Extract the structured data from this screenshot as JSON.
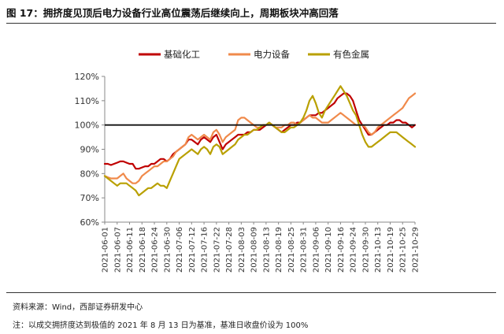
{
  "header": {
    "title": "图 17：拥挤度见顶后电力设备行业高位震荡后继续向上，周期板块冲高回落"
  },
  "footer": {
    "source": "资料来源：Wind，西部证券研发中心",
    "note": "注：以成交拥挤度达到极值的 2021 年 8 月 13 日为基准，基准日收盘价设为 100%"
  },
  "chart_data": {
    "type": "line",
    "ylim": [
      60,
      120
    ],
    "yticks": [
      "60%",
      "70%",
      "80%",
      "90%",
      "100%",
      "110%",
      "120%"
    ],
    "reference_line": 100,
    "legend_position": "top-center",
    "x": [
      "2021-06-01",
      "2021-06-02",
      "2021-06-03",
      "2021-06-04",
      "2021-06-07",
      "2021-06-08",
      "2021-06-09",
      "2021-06-10",
      "2021-06-11",
      "2021-06-15",
      "2021-06-16",
      "2021-06-17",
      "2021-06-18",
      "2021-06-21",
      "2021-06-22",
      "2021-06-23",
      "2021-06-24",
      "2021-06-25",
      "2021-06-28",
      "2021-06-29",
      "2021-06-30",
      "2021-07-01",
      "2021-07-02",
      "2021-07-05",
      "2021-07-06",
      "2021-07-07",
      "2021-07-08",
      "2021-07-09",
      "2021-07-12",
      "2021-07-13",
      "2021-07-14",
      "2021-07-15",
      "2021-07-16",
      "2021-07-19",
      "2021-07-20",
      "2021-07-21",
      "2021-07-22",
      "2021-07-23",
      "2021-07-26",
      "2021-07-27",
      "2021-07-28",
      "2021-07-29",
      "2021-07-30",
      "2021-08-02",
      "2021-08-03",
      "2021-08-04",
      "2021-08-05",
      "2021-08-06",
      "2021-08-09",
      "2021-08-10",
      "2021-08-11",
      "2021-08-12",
      "2021-08-13",
      "2021-08-16",
      "2021-08-17",
      "2021-08-18",
      "2021-08-19",
      "2021-08-20",
      "2021-08-23",
      "2021-08-24",
      "2021-08-25",
      "2021-08-26",
      "2021-08-27",
      "2021-08-30",
      "2021-08-31",
      "2021-09-01",
      "2021-09-02",
      "2021-09-03",
      "2021-09-06",
      "2021-09-07",
      "2021-09-08",
      "2021-09-09",
      "2021-09-10",
      "2021-09-13",
      "2021-09-14",
      "2021-09-15",
      "2021-09-16",
      "2021-09-17",
      "2021-09-22",
      "2021-09-23",
      "2021-09-24",
      "2021-09-27",
      "2021-09-28",
      "2021-09-29",
      "2021-09-30",
      "2021-10-08",
      "2021-10-11",
      "2021-10-12",
      "2021-10-13",
      "2021-10-14",
      "2021-10-15",
      "2021-10-18",
      "2021-10-19",
      "2021-10-20",
      "2021-10-21",
      "2021-10-22",
      "2021-10-25",
      "2021-10-26",
      "2021-10-27",
      "2021-10-28",
      "2021-10-29"
    ],
    "x_tick_labels": [
      "2021-06-01",
      "2021-06-07",
      "2021-06-11",
      "2021-06-18",
      "2021-06-24",
      "2021-06-30",
      "2021-07-06",
      "2021-07-12",
      "2021-07-16",
      "2021-07-22",
      "2021-07-28",
      "2021-08-03",
      "2021-08-09",
      "2021-08-13",
      "2021-08-19",
      "2021-08-25",
      "2021-08-31",
      "2021-09-06",
      "2021-09-10",
      "2021-09-16",
      "2021-09-24",
      "2021-09-30",
      "2021-10-13",
      "2021-10-19",
      "2021-10-25",
      "2021-10-29"
    ],
    "series": [
      {
        "name": "基础化工",
        "color": "#c00000",
        "values": [
          84,
          84,
          83.5,
          84,
          84.5,
          85,
          85,
          84.5,
          84,
          84,
          82,
          82,
          82.5,
          83,
          83,
          84,
          84,
          85,
          86,
          86,
          85,
          86,
          88,
          89,
          90,
          91,
          92,
          94,
          94,
          93,
          92,
          94,
          95,
          94,
          93,
          95,
          96,
          93,
          90,
          92,
          93,
          94,
          95,
          96,
          96,
          96,
          97,
          97,
          98,
          98,
          98,
          99,
          100,
          101,
          100,
          99,
          98,
          97,
          98,
          99,
          100,
          100,
          101,
          101,
          102,
          103,
          104,
          104,
          104,
          105,
          105,
          106,
          107,
          108,
          109,
          111,
          112,
          113,
          113,
          112,
          110,
          106,
          102,
          100,
          98,
          96,
          96,
          97,
          98,
          99,
          100,
          100,
          101,
          101,
          102,
          102,
          101,
          101,
          100,
          99,
          100
        ]
      },
      {
        "name": "电力设备",
        "color": "#f08a4b",
        "values": [
          79,
          78.5,
          78,
          78,
          78,
          79,
          80,
          78,
          77,
          76,
          76,
          77,
          79,
          80,
          81,
          82,
          83,
          83,
          84,
          85,
          85,
          86,
          87,
          89,
          90,
          91,
          92,
          95,
          96,
          95,
          94,
          95,
          96,
          95,
          94,
          97,
          98,
          96,
          93,
          95,
          96,
          97,
          98,
          102,
          103,
          103,
          102,
          101,
          100,
          99,
          99,
          100,
          100,
          101,
          100,
          99,
          99,
          99,
          100,
          100,
          101,
          101,
          100,
          101,
          102,
          103,
          104,
          103,
          103,
          102,
          101,
          101,
          101,
          102,
          103,
          104,
          105,
          104,
          103,
          102,
          101,
          100,
          100,
          100,
          99,
          97,
          96,
          97,
          99,
          100,
          101,
          102,
          103,
          104,
          105,
          106,
          107,
          109,
          111,
          112,
          113
        ]
      },
      {
        "name": "有色金属",
        "color": "#b9a000",
        "values": [
          79,
          78,
          77,
          76,
          75,
          76,
          76,
          76,
          75,
          74,
          73,
          71,
          72,
          73,
          74,
          74,
          75,
          76,
          75,
          75,
          74,
          77,
          80,
          83,
          86,
          87,
          88,
          89,
          90,
          89,
          88,
          90,
          91,
          90,
          88,
          91,
          92,
          91,
          88,
          89,
          90,
          91,
          92,
          94,
          95,
          96,
          96,
          97,
          98,
          98,
          99,
          100,
          100,
          101,
          100,
          99,
          98,
          97,
          97,
          98,
          99,
          99,
          100,
          101,
          103,
          106,
          110,
          112,
          109,
          105,
          103,
          106,
          108,
          110,
          112,
          114,
          116,
          114,
          112,
          109,
          106,
          104,
          100,
          96,
          93,
          91,
          91,
          92,
          93,
          94,
          95,
          96,
          97,
          97,
          97,
          96,
          95,
          94,
          93,
          92,
          91
        ]
      }
    ]
  }
}
